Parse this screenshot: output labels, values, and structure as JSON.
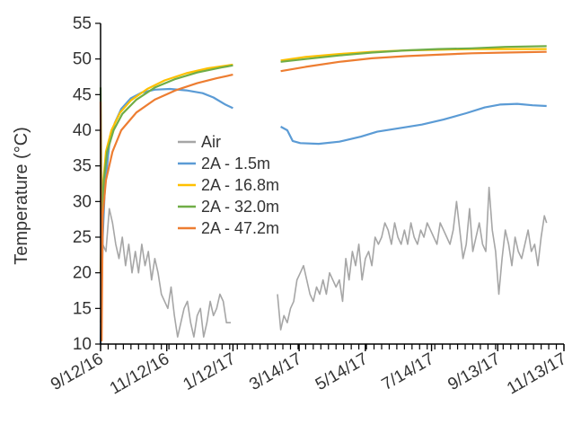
{
  "chart_data": {
    "type": "line",
    "title": "",
    "xlabel": "",
    "ylabel": "Temperature (°C)",
    "ylim": [
      10,
      55
    ],
    "yticks": [
      "10",
      "15",
      "20",
      "25",
      "30",
      "35",
      "40",
      "45",
      "50",
      "55"
    ],
    "xlim": [
      "2016-09-12",
      "2017-11-13"
    ],
    "xtick_labels": [
      "9/12/16",
      "11/12/16",
      "1/12/17",
      "3/14/17",
      "5/14/17",
      "7/14/17",
      "9/13/17",
      "11/13/17"
    ],
    "xtick_dates": [
      "2016-09-12",
      "2016-11-12",
      "2017-01-12",
      "2017-03-14",
      "2017-05-14",
      "2017-07-14",
      "2017-09-13",
      "2017-11-13"
    ],
    "grid": false,
    "legend_position": "middle-left",
    "series": [
      {
        "name": "Air",
        "color": "#a6a6a6",
        "segments": [
          [
            [
              "2016-09-12",
              13
            ],
            [
              "2016-09-14",
              24
            ],
            [
              "2016-09-17",
              23
            ],
            [
              "2016-09-20",
              29
            ],
            [
              "2016-09-23",
              27
            ],
            [
              "2016-09-26",
              24
            ],
            [
              "2016-09-29",
              22
            ],
            [
              "2016-10-02",
              25
            ],
            [
              "2016-10-05",
              21
            ],
            [
              "2016-10-08",
              24
            ],
            [
              "2016-10-11",
              20
            ],
            [
              "2016-10-14",
              23
            ],
            [
              "2016-10-17",
              20
            ],
            [
              "2016-10-20",
              24
            ],
            [
              "2016-10-23",
              21
            ],
            [
              "2016-10-26",
              23
            ],
            [
              "2016-10-29",
              19
            ],
            [
              "2016-11-01",
              22
            ],
            [
              "2016-11-04",
              20
            ],
            [
              "2016-11-07",
              17
            ],
            [
              "2016-11-10",
              16
            ],
            [
              "2016-11-13",
              15
            ],
            [
              "2016-11-16",
              18
            ],
            [
              "2016-11-19",
              14
            ],
            [
              "2016-11-22",
              11
            ],
            [
              "2016-11-25",
              13
            ],
            [
              "2016-11-28",
              15
            ],
            [
              "2016-12-01",
              16
            ],
            [
              "2016-12-04",
              13
            ],
            [
              "2016-12-07",
              11
            ],
            [
              "2016-12-10",
              14
            ],
            [
              "2016-12-13",
              15
            ],
            [
              "2016-12-16",
              11
            ],
            [
              "2016-12-19",
              13
            ],
            [
              "2016-12-22",
              16
            ],
            [
              "2016-12-25",
              14
            ],
            [
              "2016-12-28",
              15
            ],
            [
              "2016-12-31",
              17
            ],
            [
              "2017-01-03",
              16
            ],
            [
              "2017-01-06",
              13
            ],
            [
              "2017-01-10",
              13
            ]
          ],
          [
            [
              "2017-02-22",
              17
            ],
            [
              "2017-02-25",
              12
            ],
            [
              "2017-02-28",
              14
            ],
            [
              "2017-03-03",
              13
            ],
            [
              "2017-03-06",
              15
            ],
            [
              "2017-03-09",
              16
            ],
            [
              "2017-03-12",
              19
            ],
            [
              "2017-03-15",
              20
            ],
            [
              "2017-03-18",
              21
            ],
            [
              "2017-03-21",
              19
            ],
            [
              "2017-03-24",
              17
            ],
            [
              "2017-03-27",
              16
            ],
            [
              "2017-03-30",
              18
            ],
            [
              "2017-04-02",
              17
            ],
            [
              "2017-04-05",
              19
            ],
            [
              "2017-04-08",
              17
            ],
            [
              "2017-04-11",
              20
            ],
            [
              "2017-04-14",
              19
            ],
            [
              "2017-04-17",
              18
            ],
            [
              "2017-04-20",
              19
            ],
            [
              "2017-04-23",
              16
            ],
            [
              "2017-04-26",
              22
            ],
            [
              "2017-04-29",
              19
            ],
            [
              "2017-05-02",
              23
            ],
            [
              "2017-05-05",
              21
            ],
            [
              "2017-05-08",
              24
            ],
            [
              "2017-05-11",
              19
            ],
            [
              "2017-05-14",
              22
            ],
            [
              "2017-05-17",
              23
            ],
            [
              "2017-05-20",
              21
            ],
            [
              "2017-05-23",
              25
            ],
            [
              "2017-05-26",
              24
            ],
            [
              "2017-05-29",
              25
            ],
            [
              "2017-06-01",
              27
            ],
            [
              "2017-06-04",
              26
            ],
            [
              "2017-06-07",
              24
            ],
            [
              "2017-06-10",
              27
            ],
            [
              "2017-06-13",
              25
            ],
            [
              "2017-06-16",
              24
            ],
            [
              "2017-06-19",
              26
            ],
            [
              "2017-06-22",
              24
            ],
            [
              "2017-06-25",
              27
            ],
            [
              "2017-06-28",
              25
            ],
            [
              "2017-07-01",
              24
            ],
            [
              "2017-07-04",
              26
            ],
            [
              "2017-07-07",
              25
            ],
            [
              "2017-07-10",
              27
            ],
            [
              "2017-07-13",
              26
            ],
            [
              "2017-07-16",
              25
            ],
            [
              "2017-07-19",
              24
            ],
            [
              "2017-07-22",
              27
            ],
            [
              "2017-07-25",
              26
            ],
            [
              "2017-07-28",
              25
            ],
            [
              "2017-07-31",
              24
            ],
            [
              "2017-08-03",
              26
            ],
            [
              "2017-08-06",
              30
            ],
            [
              "2017-08-09",
              26
            ],
            [
              "2017-08-12",
              22
            ],
            [
              "2017-08-15",
              24
            ],
            [
              "2017-08-18",
              29
            ],
            [
              "2017-08-21",
              23
            ],
            [
              "2017-08-24",
              25
            ],
            [
              "2017-08-27",
              27
            ],
            [
              "2017-08-30",
              24
            ],
            [
              "2017-09-02",
              23
            ],
            [
              "2017-09-05",
              32
            ],
            [
              "2017-09-08",
              26
            ],
            [
              "2017-09-11",
              23
            ],
            [
              "2017-09-14",
              17
            ],
            [
              "2017-09-17",
              22
            ],
            [
              "2017-09-20",
              26
            ],
            [
              "2017-09-23",
              24
            ],
            [
              "2017-09-26",
              21
            ],
            [
              "2017-09-29",
              25
            ],
            [
              "2017-10-02",
              23
            ],
            [
              "2017-10-05",
              22
            ],
            [
              "2017-10-08",
              24
            ],
            [
              "2017-10-11",
              26
            ],
            [
              "2017-10-14",
              23
            ],
            [
              "2017-10-17",
              24
            ],
            [
              "2017-10-20",
              21
            ],
            [
              "2017-10-23",
              25
            ],
            [
              "2017-10-26",
              28
            ],
            [
              "2017-10-28",
              27
            ]
          ]
        ]
      },
      {
        "name": "2A - 1.5m",
        "color": "#5b9bd5",
        "segments": [
          [
            [
              "2016-09-12",
              10
            ],
            [
              "2016-09-14",
              25
            ],
            [
              "2016-09-16",
              32
            ],
            [
              "2016-09-20",
              38
            ],
            [
              "2016-09-25",
              41
            ],
            [
              "2016-10-01",
              43
            ],
            [
              "2016-10-10",
              44.5
            ],
            [
              "2016-10-20",
              45.3
            ],
            [
              "2016-11-01",
              45.7
            ],
            [
              "2016-11-15",
              45.8
            ],
            [
              "2016-11-30",
              45.6
            ],
            [
              "2016-12-15",
              45.2
            ],
            [
              "2016-12-25",
              44.6
            ],
            [
              "2017-01-05",
              43.6
            ],
            [
              "2017-01-12",
              43.1
            ]
          ],
          [
            [
              "2017-02-25",
              40.5
            ],
            [
              "2017-03-03",
              40
            ],
            [
              "2017-03-08",
              38.5
            ],
            [
              "2017-03-15",
              38.2
            ],
            [
              "2017-04-01",
              38.1
            ],
            [
              "2017-04-20",
              38.4
            ],
            [
              "2017-05-10",
              39.1
            ],
            [
              "2017-05-25",
              39.8
            ],
            [
              "2017-06-15",
              40.3
            ],
            [
              "2017-07-05",
              40.8
            ],
            [
              "2017-07-25",
              41.5
            ],
            [
              "2017-08-15",
              42.4
            ],
            [
              "2017-09-01",
              43.2
            ],
            [
              "2017-09-15",
              43.6
            ],
            [
              "2017-10-01",
              43.7
            ],
            [
              "2017-10-15",
              43.5
            ],
            [
              "2017-10-28",
              43.4
            ]
          ]
        ]
      },
      {
        "name": "2A - 16.8m",
        "color": "#ffc000",
        "segments": [
          [
            [
              "2016-09-12",
              20
            ],
            [
              "2016-09-14",
              32
            ],
            [
              "2016-09-17",
              37
            ],
            [
              "2016-09-22",
              40
            ],
            [
              "2016-09-30",
              42.5
            ],
            [
              "2016-10-10",
              44.2
            ],
            [
              "2016-10-25",
              45.8
            ],
            [
              "2016-11-10",
              47
            ],
            [
              "2016-11-30",
              48
            ],
            [
              "2016-12-20",
              48.7
            ],
            [
              "2017-01-12",
              49.2
            ]
          ],
          [
            [
              "2017-02-25",
              49.8
            ],
            [
              "2017-03-20",
              50.3
            ],
            [
              "2017-04-20",
              50.7
            ],
            [
              "2017-05-20",
              51
            ],
            [
              "2017-06-20",
              51.2
            ],
            [
              "2017-07-20",
              51.3
            ],
            [
              "2017-08-20",
              51.4
            ],
            [
              "2017-09-20",
              51.4
            ],
            [
              "2017-10-28",
              51.4
            ]
          ]
        ]
      },
      {
        "name": "2A - 32.0m",
        "color": "#70ad47",
        "segments": [
          [
            [
              "2016-09-12",
              46
            ],
            [
              "2016-09-13",
              28
            ],
            [
              "2016-09-15",
              33
            ],
            [
              "2016-09-18",
              37
            ],
            [
              "2016-09-24",
              40
            ],
            [
              "2016-10-02",
              42.3
            ],
            [
              "2016-10-15",
              44.3
            ],
            [
              "2016-11-01",
              46
            ],
            [
              "2016-11-20",
              47.2
            ],
            [
              "2016-12-10",
              48.1
            ],
            [
              "2017-01-01",
              48.8
            ],
            [
              "2017-01-12",
              49.1
            ]
          ],
          [
            [
              "2017-02-25",
              49.6
            ],
            [
              "2017-03-20",
              50
            ],
            [
              "2017-04-20",
              50.5
            ],
            [
              "2017-05-20",
              50.9
            ],
            [
              "2017-06-20",
              51.2
            ],
            [
              "2017-07-20",
              51.4
            ],
            [
              "2017-08-20",
              51.5
            ],
            [
              "2017-09-20",
              51.7
            ],
            [
              "2017-10-28",
              51.8
            ]
          ]
        ]
      },
      {
        "name": "2A - 47.2m",
        "color": "#ed7d31",
        "segments": [
          [
            [
              "2016-09-12",
              44
            ],
            [
              "2016-09-13",
              10.5
            ],
            [
              "2016-09-14",
              28
            ],
            [
              "2016-09-17",
              33
            ],
            [
              "2016-09-23",
              37
            ],
            [
              "2016-10-01",
              40
            ],
            [
              "2016-10-15",
              42.5
            ],
            [
              "2016-11-01",
              44.3
            ],
            [
              "2016-11-20",
              45.6
            ],
            [
              "2016-12-10",
              46.6
            ],
            [
              "2016-12-28",
              47.3
            ],
            [
              "2017-01-12",
              47.8
            ]
          ],
          [
            [
              "2017-02-25",
              48.3
            ],
            [
              "2017-03-20",
              48.9
            ],
            [
              "2017-04-20",
              49.6
            ],
            [
              "2017-05-20",
              50.1
            ],
            [
              "2017-06-20",
              50.4
            ],
            [
              "2017-07-20",
              50.6
            ],
            [
              "2017-08-20",
              50.8
            ],
            [
              "2017-09-20",
              50.9
            ],
            [
              "2017-10-28",
              51
            ]
          ]
        ]
      }
    ]
  }
}
